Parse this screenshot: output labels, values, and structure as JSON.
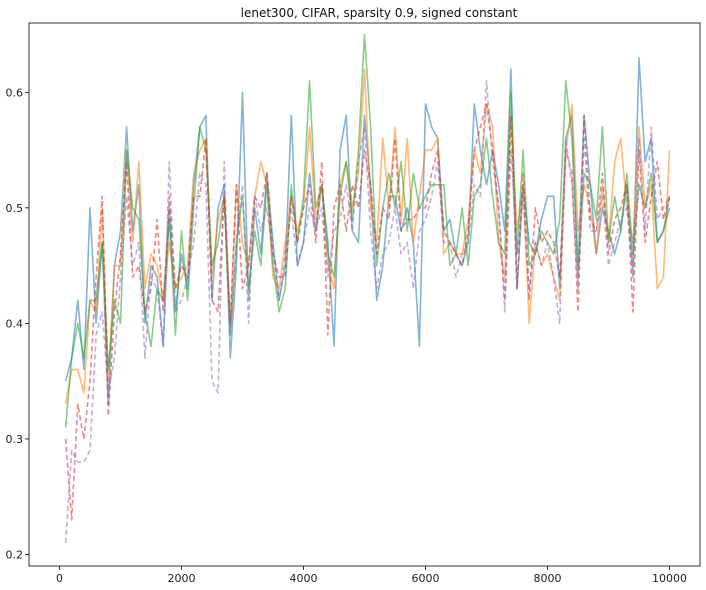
{
  "chart_data": {
    "type": "line",
    "title": "lenet300, CIFAR, sparsity 0.9, signed constant",
    "xlabel": "",
    "ylabel": "",
    "xlim": [
      -500,
      10500
    ],
    "ylim": [
      0.19,
      0.66
    ],
    "xticks": [
      0,
      2000,
      4000,
      6000,
      8000,
      10000
    ],
    "xtick_labels": [
      "0",
      "2000",
      "4000",
      "6000",
      "8000",
      "10000"
    ],
    "yticks": [
      0.2,
      0.3,
      0.4,
      0.5,
      0.6
    ],
    "ytick_labels": [
      "0.2",
      "0.3",
      "0.4",
      "0.5",
      "0.6"
    ],
    "grid": false,
    "legend": "none",
    "x": [
      100,
      200,
      300,
      400,
      500,
      600,
      700,
      800,
      900,
      1000,
      1100,
      1200,
      1300,
      1400,
      1500,
      1600,
      1700,
      1800,
      1900,
      2000,
      2100,
      2200,
      2300,
      2400,
      2500,
      2600,
      2700,
      2800,
      2900,
      3000,
      3100,
      3200,
      3300,
      3400,
      3500,
      3600,
      3700,
      3800,
      3900,
      4000,
      4100,
      4200,
      4300,
      4400,
      4500,
      4600,
      4700,
      4800,
      4900,
      5000,
      5100,
      5200,
      5300,
      5400,
      5500,
      5600,
      5700,
      5800,
      5900,
      6000,
      6100,
      6200,
      6300,
      6400,
      6500,
      6600,
      6700,
      6800,
      6900,
      7000,
      7100,
      7200,
      7300,
      7400,
      7500,
      7600,
      7700,
      7800,
      7900,
      8000,
      8100,
      8200,
      8300,
      8400,
      8500,
      8600,
      8700,
      8800,
      8900,
      9000,
      9100,
      9200,
      9300,
      9400,
      9500,
      9600,
      9700,
      9800,
      9900,
      10000
    ],
    "series": [
      {
        "color": "#1f77b4",
        "dashed": false,
        "opacity": 0.55,
        "values": [
          0.35,
          0.37,
          0.42,
          0.36,
          0.5,
          0.4,
          0.47,
          0.33,
          0.45,
          0.48,
          0.57,
          0.48,
          0.52,
          0.4,
          0.45,
          0.44,
          0.38,
          0.5,
          0.41,
          0.46,
          0.43,
          0.52,
          0.57,
          0.58,
          0.42,
          0.5,
          0.52,
          0.37,
          0.45,
          0.6,
          0.42,
          0.5,
          0.46,
          0.53,
          0.47,
          0.42,
          0.45,
          0.58,
          0.45,
          0.47,
          0.53,
          0.48,
          0.52,
          0.47,
          0.38,
          0.55,
          0.58,
          0.48,
          0.47,
          0.58,
          0.52,
          0.42,
          0.45,
          0.51,
          0.51,
          0.48,
          0.5,
          0.47,
          0.38,
          0.59,
          0.57,
          0.56,
          0.48,
          0.49,
          0.46,
          0.45,
          0.47,
          0.59,
          0.55,
          0.52,
          0.55,
          0.52,
          0.48,
          0.62,
          0.43,
          0.52,
          0.47,
          0.46,
          0.49,
          0.51,
          0.51,
          0.43,
          0.56,
          0.58,
          0.45,
          0.58,
          0.52,
          0.46,
          0.5,
          0.48,
          0.46,
          0.48,
          0.52,
          0.44,
          0.63,
          0.54,
          0.56,
          0.47,
          0.48,
          0.5
        ]
      },
      {
        "color": "#ff7f0e",
        "dashed": false,
        "opacity": 0.55,
        "values": [
          0.33,
          0.36,
          0.36,
          0.34,
          0.42,
          0.41,
          0.5,
          0.35,
          0.45,
          0.45,
          0.55,
          0.47,
          0.54,
          0.43,
          0.46,
          0.45,
          0.42,
          0.47,
          0.43,
          0.44,
          0.45,
          0.53,
          0.55,
          0.56,
          0.44,
          0.49,
          0.51,
          0.4,
          0.52,
          0.47,
          0.45,
          0.51,
          0.54,
          0.52,
          0.44,
          0.43,
          0.47,
          0.51,
          0.48,
          0.5,
          0.57,
          0.49,
          0.52,
          0.45,
          0.43,
          0.52,
          0.54,
          0.5,
          0.53,
          0.62,
          0.5,
          0.47,
          0.56,
          0.5,
          0.57,
          0.49,
          0.56,
          0.47,
          0.51,
          0.55,
          0.55,
          0.56,
          0.46,
          0.47,
          0.46,
          0.46,
          0.49,
          0.55,
          0.53,
          0.59,
          0.57,
          0.47,
          0.44,
          0.58,
          0.48,
          0.52,
          0.4,
          0.47,
          0.45,
          0.46,
          0.44,
          0.42,
          0.55,
          0.59,
          0.48,
          0.52,
          0.5,
          0.46,
          0.52,
          0.47,
          0.54,
          0.56,
          0.5,
          0.47,
          0.57,
          0.5,
          0.52,
          0.43,
          0.44,
          0.55
        ]
      },
      {
        "color": "#2ca02c",
        "dashed": false,
        "opacity": 0.55,
        "values": [
          0.31,
          0.37,
          0.4,
          0.37,
          0.42,
          0.42,
          0.47,
          0.36,
          0.42,
          0.4,
          0.55,
          0.5,
          0.49,
          0.41,
          0.38,
          0.43,
          0.42,
          0.49,
          0.39,
          0.48,
          0.42,
          0.5,
          0.57,
          0.55,
          0.45,
          0.47,
          0.51,
          0.39,
          0.47,
          0.51,
          0.43,
          0.48,
          0.45,
          0.52,
          0.45,
          0.41,
          0.43,
          0.52,
          0.47,
          0.51,
          0.61,
          0.5,
          0.52,
          0.46,
          0.44,
          0.51,
          0.54,
          0.49,
          0.55,
          0.65,
          0.57,
          0.45,
          0.5,
          0.53,
          0.5,
          0.54,
          0.48,
          0.53,
          0.5,
          0.51,
          0.52,
          0.52,
          0.52,
          0.45,
          0.46,
          0.5,
          0.45,
          0.51,
          0.52,
          0.56,
          0.51,
          0.47,
          0.46,
          0.6,
          0.46,
          0.55,
          0.45,
          0.46,
          0.48,
          0.47,
          0.46,
          0.49,
          0.61,
          0.56,
          0.44,
          0.53,
          0.52,
          0.49,
          0.57,
          0.47,
          0.51,
          0.48,
          0.53,
          0.46,
          0.52,
          0.5,
          0.53,
          0.47,
          0.48,
          0.51
        ]
      },
      {
        "color": "#d62728",
        "dashed": true,
        "opacity": 0.55,
        "values": [
          0.3,
          0.23,
          0.33,
          0.3,
          0.35,
          0.44,
          0.51,
          0.32,
          0.41,
          0.46,
          0.54,
          0.44,
          0.45,
          0.41,
          0.43,
          0.49,
          0.41,
          0.51,
          0.43,
          0.45,
          0.44,
          0.51,
          0.51,
          0.56,
          0.42,
          0.41,
          0.51,
          0.4,
          0.52,
          0.43,
          0.45,
          0.51,
          0.5,
          0.53,
          0.46,
          0.44,
          0.44,
          0.51,
          0.47,
          0.5,
          0.52,
          0.47,
          0.54,
          0.39,
          0.5,
          0.52,
          0.48,
          0.52,
          0.5,
          0.55,
          0.52,
          0.46,
          0.5,
          0.49,
          0.56,
          0.48,
          0.49,
          0.49,
          0.5,
          0.5,
          0.53,
          0.55,
          0.48,
          0.47,
          0.46,
          0.45,
          0.48,
          0.55,
          0.57,
          0.59,
          0.55,
          0.5,
          0.42,
          0.58,
          0.43,
          0.53,
          0.42,
          0.5,
          0.47,
          0.48,
          0.47,
          0.44,
          0.55,
          0.53,
          0.41,
          0.58,
          0.49,
          0.48,
          0.53,
          0.46,
          0.49,
          0.5,
          0.52,
          0.41,
          0.55,
          0.47,
          0.51,
          0.54,
          0.49,
          0.51
        ]
      },
      {
        "color": "#9467bd",
        "dashed": true,
        "opacity": 0.55,
        "values": [
          0.21,
          0.29,
          0.28,
          0.28,
          0.29,
          0.39,
          0.41,
          0.34,
          0.37,
          0.44,
          0.51,
          0.45,
          0.47,
          0.37,
          0.44,
          0.43,
          0.38,
          0.54,
          0.41,
          0.42,
          0.44,
          0.47,
          0.53,
          0.52,
          0.35,
          0.34,
          0.54,
          0.39,
          0.47,
          0.52,
          0.4,
          0.51,
          0.48,
          0.5,
          0.46,
          0.42,
          0.46,
          0.5,
          0.45,
          0.47,
          0.5,
          0.48,
          0.5,
          0.44,
          0.48,
          0.49,
          0.52,
          0.48,
          0.54,
          0.57,
          0.48,
          0.43,
          0.46,
          0.47,
          0.5,
          0.46,
          0.47,
          0.43,
          0.48,
          0.49,
          0.51,
          0.54,
          0.47,
          0.47,
          0.44,
          0.46,
          0.47,
          0.52,
          0.51,
          0.61,
          0.54,
          0.5,
          0.41,
          0.55,
          0.46,
          0.51,
          0.43,
          0.47,
          0.45,
          0.47,
          0.44,
          0.4,
          0.56,
          0.52,
          0.43,
          0.56,
          0.48,
          0.48,
          0.51,
          0.45,
          0.47,
          0.49,
          0.5,
          0.45,
          0.56,
          0.48,
          0.57,
          0.49,
          0.5,
          0.51
        ]
      }
    ]
  }
}
